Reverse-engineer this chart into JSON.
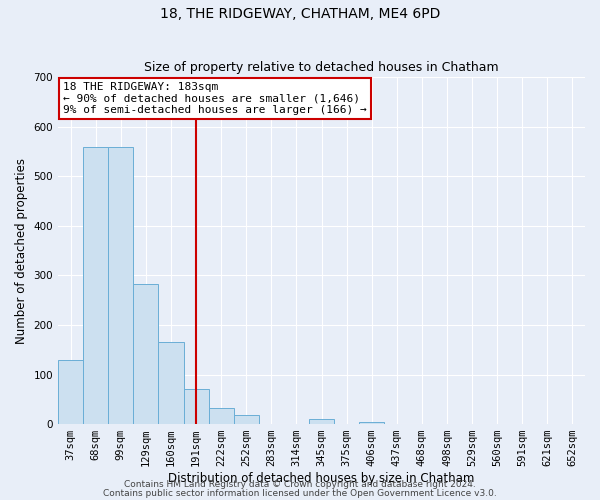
{
  "title": "18, THE RIDGEWAY, CHATHAM, ME4 6PD",
  "subtitle": "Size of property relative to detached houses in Chatham",
  "xlabel": "Distribution of detached houses by size in Chatham",
  "ylabel": "Number of detached properties",
  "bar_labels": [
    "37sqm",
    "68sqm",
    "99sqm",
    "129sqm",
    "160sqm",
    "191sqm",
    "222sqm",
    "252sqm",
    "283sqm",
    "314sqm",
    "345sqm",
    "375sqm",
    "406sqm",
    "437sqm",
    "468sqm",
    "498sqm",
    "529sqm",
    "560sqm",
    "591sqm",
    "621sqm",
    "652sqm"
  ],
  "bar_values": [
    130,
    558,
    558,
    283,
    165,
    70,
    32,
    18,
    0,
    0,
    10,
    0,
    5,
    0,
    0,
    0,
    0,
    0,
    0,
    0,
    0
  ],
  "bar_color": "#cce0f0",
  "bar_edge_color": "#6aaed6",
  "vline_x": 5,
  "vline_color": "#cc0000",
  "annotation_box_color": "#cc0000",
  "annotation_lines": [
    "18 THE RIDGEWAY: 183sqm",
    "← 90% of detached houses are smaller (1,646)",
    "9% of semi-detached houses are larger (166) →"
  ],
  "ylim": [
    0,
    700
  ],
  "yticks": [
    0,
    100,
    200,
    300,
    400,
    500,
    600,
    700
  ],
  "footnote1": "Contains HM Land Registry data © Crown copyright and database right 2024.",
  "footnote2": "Contains public sector information licensed under the Open Government Licence v3.0.",
  "bg_color": "#e8eef8",
  "plot_bg_color": "#e8eef8",
  "grid_color": "#ffffff",
  "title_fontsize": 10,
  "subtitle_fontsize": 9,
  "axis_label_fontsize": 8.5,
  "tick_fontsize": 7.5,
  "annotation_fontsize": 8,
  "footnote_fontsize": 6.5
}
